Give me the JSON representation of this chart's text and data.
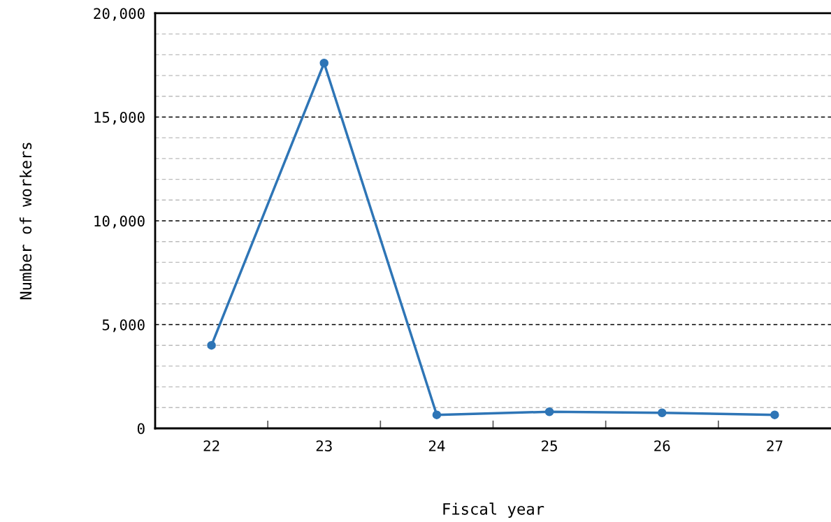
{
  "chart_data": {
    "type": "line",
    "xlabel": "Fiscal year",
    "ylabel": "Number of workers",
    "categories": [
      "22",
      "23",
      "24",
      "25",
      "26",
      "27"
    ],
    "series": [
      {
        "color": "#2e75b6",
        "values": [
          4000,
          17600,
          650,
          800,
          750,
          650
        ]
      }
    ],
    "ylim": [
      0,
      20000
    ],
    "yticks": [
      {
        "value": 0,
        "label": "0"
      },
      {
        "value": 1000,
        "label": null
      },
      {
        "value": 2000,
        "label": null
      },
      {
        "value": 3000,
        "label": null
      },
      {
        "value": 4000,
        "label": null
      },
      {
        "value": 5000,
        "label": "5,000"
      },
      {
        "value": 6000,
        "label": null
      },
      {
        "value": 7000,
        "label": null
      },
      {
        "value": 8000,
        "label": null
      },
      {
        "value": 9000,
        "label": null
      },
      {
        "value": 10000,
        "label": "10,000"
      },
      {
        "value": 11000,
        "label": null
      },
      {
        "value": 12000,
        "label": null
      },
      {
        "value": 13000,
        "label": null
      },
      {
        "value": 14000,
        "label": null
      },
      {
        "value": 15000,
        "label": "15,000"
      },
      {
        "value": 16000,
        "label": null
      },
      {
        "value": 17000,
        "label": null
      },
      {
        "value": 18000,
        "label": null
      },
      {
        "value": 19000,
        "label": null
      },
      {
        "value": 20000,
        "label": "20,000"
      }
    ],
    "grid": "y",
    "marker": "circle",
    "line_style": "solid"
  }
}
